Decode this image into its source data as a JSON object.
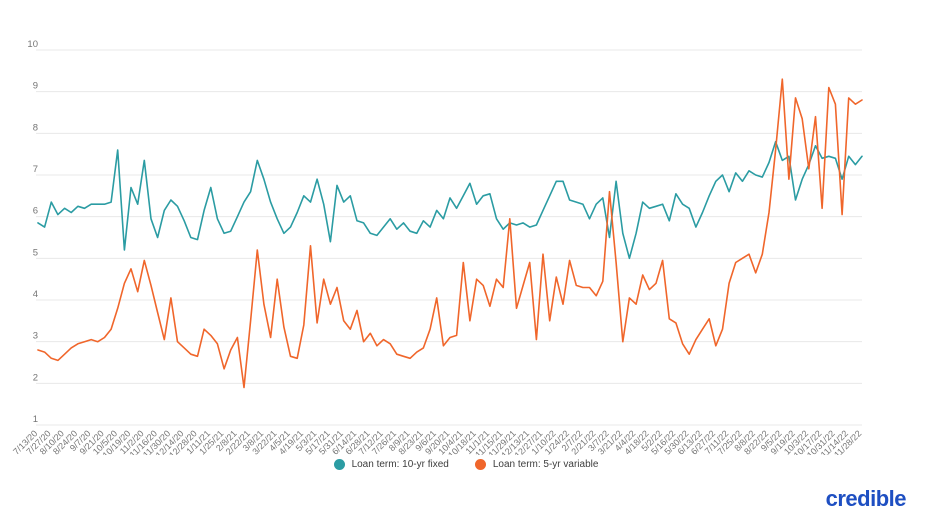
{
  "chart_data": {
    "type": "line",
    "title": "",
    "xlabel": "",
    "ylabel": "",
    "ylim": [
      1,
      10
    ],
    "y_ticks": [
      1,
      2,
      3,
      4,
      5,
      6,
      7,
      8,
      9,
      10
    ],
    "grid": "horizontal",
    "legend_position": "bottom-center",
    "x_tick_labels": [
      "7/13/20",
      "7/27/20",
      "8/10/20",
      "8/24/20",
      "9/7/20",
      "9/21/20",
      "10/5/20",
      "10/19/20",
      "11/2/20",
      "11/16/20",
      "11/30/20",
      "12/14/20",
      "12/28/20",
      "1/11/21",
      "1/25/21",
      "2/8/21",
      "2/22/21",
      "3/8/21",
      "3/22/21",
      "4/5/21",
      "4/19/21",
      "5/3/21",
      "5/17/21",
      "5/31/21",
      "6/14/21",
      "6/28/21",
      "7/12/21",
      "7/26/21",
      "8/9/21",
      "8/23/21",
      "9/6/21",
      "9/20/21",
      "10/4/21",
      "10/18/21",
      "11/1/21",
      "11/15/21",
      "11/29/21",
      "12/13/21",
      "12/27/21",
      "1/10/22",
      "1/24/22",
      "2/7/22",
      "2/21/22",
      "3/7/22",
      "3/21/22",
      "4/4/22",
      "4/18/22",
      "5/2/22",
      "5/16/22",
      "5/30/22",
      "6/13/22",
      "6/27/22",
      "7/11/22",
      "7/25/22",
      "8/8/22",
      "8/22/22",
      "9/5/22",
      "9/19/22",
      "10/3/22",
      "10/17/22",
      "10/31/22",
      "11/14/22",
      "11/28/22"
    ],
    "x_points_per_tick": 2,
    "series": [
      {
        "name": "Loan term: 10-yr fixed",
        "color": "#2b9ca3",
        "values": [
          5.85,
          5.75,
          6.35,
          6.05,
          6.2,
          6.1,
          6.25,
          6.2,
          6.3,
          6.3,
          6.3,
          6.35,
          7.6,
          5.2,
          6.7,
          6.3,
          7.35,
          5.95,
          5.5,
          6.15,
          6.4,
          6.25,
          5.9,
          5.5,
          5.45,
          6.15,
          6.7,
          5.95,
          5.6,
          5.65,
          6.0,
          6.35,
          6.6,
          7.35,
          6.9,
          6.35,
          5.95,
          5.6,
          5.75,
          6.1,
          6.5,
          6.35,
          6.9,
          6.3,
          5.4,
          6.75,
          6.35,
          6.5,
          5.9,
          5.85,
          5.6,
          5.55,
          5.75,
          5.95,
          5.7,
          5.85,
          5.65,
          5.6,
          5.9,
          5.75,
          6.15,
          5.95,
          6.45,
          6.2,
          6.5,
          6.8,
          6.3,
          6.5,
          6.55,
          5.95,
          5.7,
          5.85,
          5.8,
          5.85,
          5.75,
          5.8,
          6.15,
          6.5,
          6.85,
          6.85,
          6.4,
          6.35,
          6.3,
          5.95,
          6.3,
          6.45,
          5.5,
          6.85,
          5.6,
          5.0,
          5.6,
          6.35,
          6.2,
          6.25,
          6.3,
          5.9,
          6.55,
          6.3,
          6.2,
          5.75,
          6.1,
          6.5,
          6.85,
          7.0,
          6.6,
          7.05,
          6.85,
          7.1,
          7.0,
          6.95,
          7.3,
          7.8,
          7.35,
          7.45,
          6.4,
          6.9,
          7.25,
          7.7,
          7.4,
          7.45,
          7.4,
          6.9,
          7.45,
          7.25,
          7.45
        ]
      },
      {
        "name": "Loan term: 5-yr variable",
        "color": "#f0662b",
        "values": [
          2.8,
          2.75,
          2.6,
          2.55,
          2.7,
          2.85,
          2.95,
          3.0,
          3.05,
          3.0,
          3.1,
          3.3,
          3.8,
          4.4,
          4.75,
          4.2,
          4.95,
          4.35,
          3.7,
          3.05,
          4.05,
          3.0,
          2.85,
          2.7,
          2.65,
          3.3,
          3.15,
          2.95,
          2.35,
          2.8,
          3.1,
          1.9,
          3.5,
          5.2,
          3.9,
          3.1,
          4.5,
          3.35,
          2.65,
          2.6,
          3.4,
          5.3,
          3.45,
          4.5,
          3.9,
          4.3,
          3.5,
          3.3,
          3.75,
          3.0,
          3.2,
          2.9,
          3.05,
          2.95,
          2.7,
          2.65,
          2.6,
          2.75,
          2.85,
          3.3,
          4.05,
          2.9,
          3.1,
          3.15,
          4.9,
          3.5,
          4.5,
          4.35,
          3.85,
          4.5,
          4.3,
          5.95,
          3.8,
          4.35,
          4.9,
          3.05,
          5.1,
          3.5,
          4.55,
          3.9,
          4.95,
          4.35,
          4.3,
          4.3,
          4.1,
          4.45,
          6.6,
          4.9,
          3.0,
          4.05,
          3.9,
          4.6,
          4.25,
          4.4,
          4.95,
          3.55,
          3.45,
          2.95,
          2.7,
          3.05,
          3.3,
          3.55,
          2.9,
          3.3,
          4.4,
          4.9,
          5.0,
          5.1,
          4.65,
          5.1,
          6.1,
          7.6,
          9.3,
          6.9,
          8.85,
          8.35,
          7.15,
          8.4,
          6.2,
          9.1,
          8.7,
          6.05,
          8.85,
          8.7,
          8.8
        ]
      }
    ]
  },
  "footer": {
    "logo_text": "credible"
  },
  "style": {
    "background": "#ffffff",
    "grid_color": "#e8e8e8",
    "axis_tick_color": "#757575",
    "legend_text_color": "#3d3d3d",
    "logo_color": "#1e4fc2"
  }
}
